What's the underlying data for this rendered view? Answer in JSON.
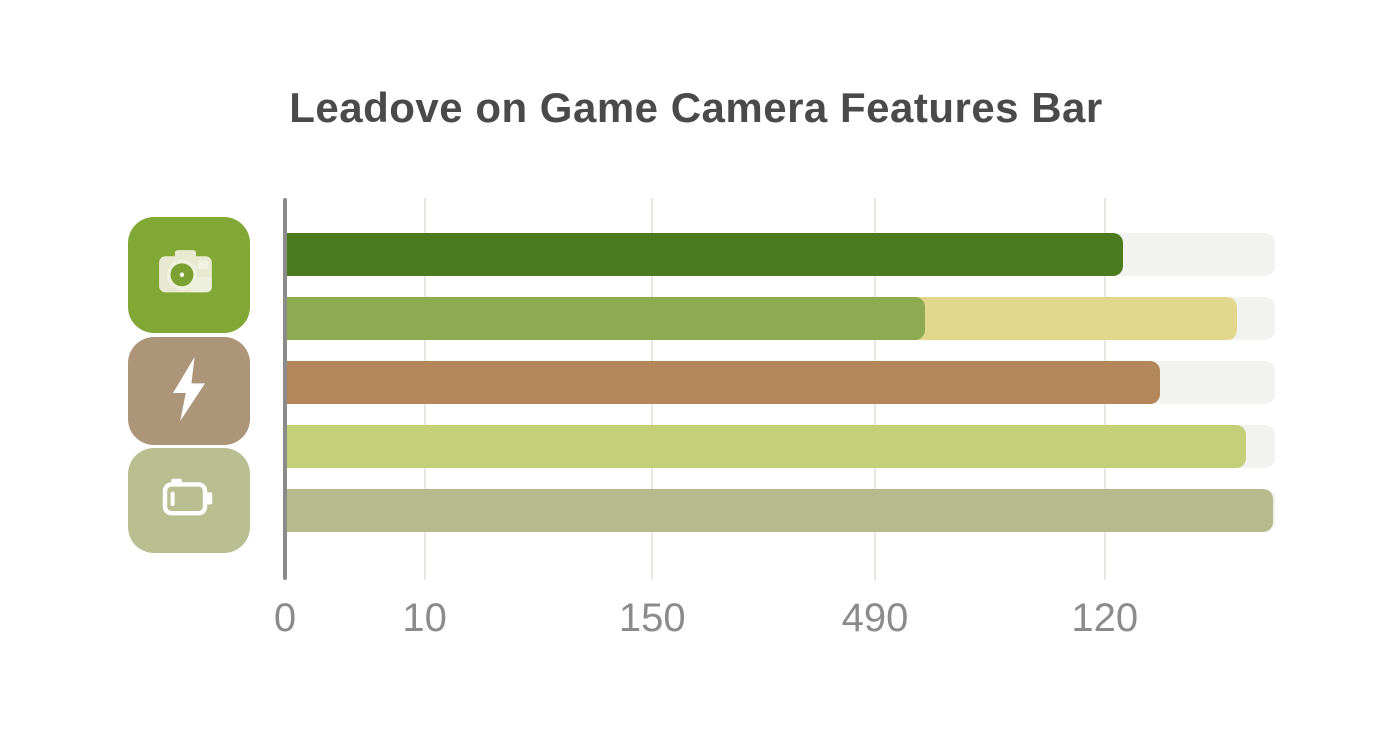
{
  "title": "Leadove on Game Camera Features Bar",
  "colors": {
    "background": "#ffffff",
    "title": "#4a4a4a",
    "axis_line": "#8b8b8b",
    "gridline": "#e6e6e3",
    "tick_label": "#8b8b8b",
    "bar_track": "#f2f2f0"
  },
  "icons": [
    {
      "name": "camera-icon",
      "tile_color": "#81a734"
    },
    {
      "name": "lightning-icon",
      "tile_color": "#ac9579"
    },
    {
      "name": "battery-icon",
      "tile_color": "#babf92"
    }
  ],
  "chart_data": {
    "type": "bar",
    "orientation": "horizontal",
    "title": "Leadove on Game Camera Features Bar",
    "grid": true,
    "category_icons": [
      "camera",
      "lightning-bolt",
      "battery"
    ],
    "x_ticks": [
      {
        "label": "0",
        "pos_pct": 0
      },
      {
        "label": "10",
        "pos_pct": 14.1
      },
      {
        "label": "150",
        "pos_pct": 37.1
      },
      {
        "label": "490",
        "pos_pct": 59.6
      },
      {
        "label": "120",
        "pos_pct": 82.8
      }
    ],
    "track_pct": 100,
    "bars": [
      {
        "row": 1,
        "color": "#4b7b1e",
        "length_pct": 84.6
      },
      {
        "row": 2,
        "color": "#8dab51",
        "length_pct": 64.6,
        "secondary": {
          "color": "#e2d88d",
          "length_pct": 96.2
        }
      },
      {
        "row": 3,
        "color": "#b3875a",
        "length_pct": 88.4
      },
      {
        "row": 4,
        "color": "#c3d077",
        "length_pct": 97.1
      },
      {
        "row": 5,
        "color": "#b6ba8d",
        "length_pct": 99.8
      }
    ]
  }
}
